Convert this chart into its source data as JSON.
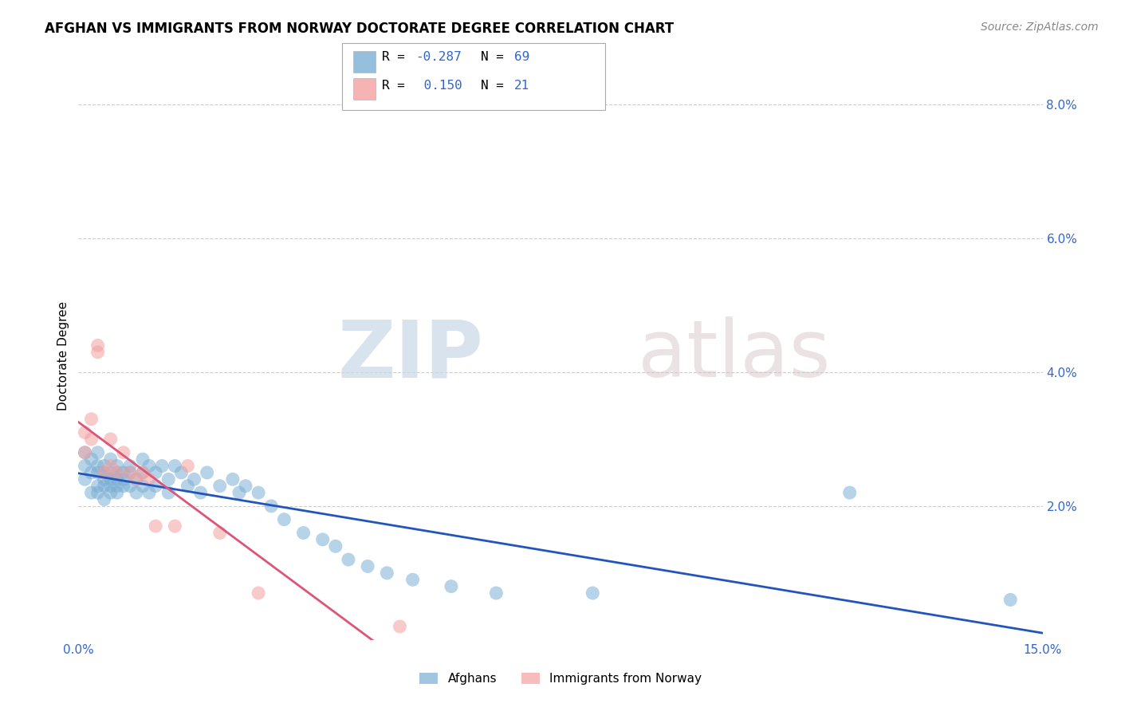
{
  "title": "AFGHAN VS IMMIGRANTS FROM NORWAY DOCTORATE DEGREE CORRELATION CHART",
  "source": "Source: ZipAtlas.com",
  "ylabel": "Doctorate Degree",
  "xlim": [
    0.0,
    0.15
  ],
  "ylim": [
    0.0,
    0.085
  ],
  "grid_color": "#cccccc",
  "background_color": "#ffffff",
  "watermark_zip": "ZIP",
  "watermark_atlas": "atlas",
  "blue_R": -0.287,
  "blue_N": 69,
  "pink_R": 0.15,
  "pink_N": 21,
  "blue_color": "#7bafd4",
  "pink_color": "#f4a0a0",
  "blue_line_color": "#2255bb",
  "pink_line_color": "#dd5577",
  "blue_x": [
    0.001,
    0.001,
    0.001,
    0.002,
    0.002,
    0.002,
    0.003,
    0.003,
    0.003,
    0.003,
    0.003,
    0.004,
    0.004,
    0.004,
    0.004,
    0.004,
    0.005,
    0.005,
    0.005,
    0.005,
    0.005,
    0.006,
    0.006,
    0.006,
    0.006,
    0.006,
    0.007,
    0.007,
    0.007,
    0.008,
    0.008,
    0.008,
    0.009,
    0.009,
    0.01,
    0.01,
    0.01,
    0.011,
    0.011,
    0.012,
    0.012,
    0.013,
    0.014,
    0.014,
    0.015,
    0.016,
    0.017,
    0.018,
    0.019,
    0.02,
    0.022,
    0.024,
    0.025,
    0.026,
    0.028,
    0.03,
    0.032,
    0.035,
    0.038,
    0.04,
    0.042,
    0.045,
    0.048,
    0.052,
    0.058,
    0.065,
    0.08,
    0.12,
    0.145
  ],
  "blue_y": [
    0.026,
    0.028,
    0.024,
    0.025,
    0.022,
    0.027,
    0.025,
    0.023,
    0.026,
    0.022,
    0.028,
    0.024,
    0.026,
    0.023,
    0.025,
    0.021,
    0.025,
    0.023,
    0.027,
    0.024,
    0.022,
    0.025,
    0.023,
    0.026,
    0.024,
    0.022,
    0.025,
    0.023,
    0.024,
    0.026,
    0.023,
    0.025,
    0.024,
    0.022,
    0.027,
    0.025,
    0.023,
    0.026,
    0.022,
    0.025,
    0.023,
    0.026,
    0.024,
    0.022,
    0.026,
    0.025,
    0.023,
    0.024,
    0.022,
    0.025,
    0.023,
    0.024,
    0.022,
    0.023,
    0.022,
    0.02,
    0.018,
    0.016,
    0.015,
    0.014,
    0.012,
    0.011,
    0.01,
    0.009,
    0.008,
    0.007,
    0.007,
    0.022,
    0.006
  ],
  "pink_x": [
    0.001,
    0.001,
    0.002,
    0.002,
    0.003,
    0.003,
    0.004,
    0.005,
    0.005,
    0.006,
    0.007,
    0.008,
    0.009,
    0.01,
    0.011,
    0.012,
    0.015,
    0.017,
    0.022,
    0.028,
    0.05
  ],
  "pink_y": [
    0.031,
    0.028,
    0.03,
    0.033,
    0.043,
    0.044,
    0.025,
    0.03,
    0.026,
    0.025,
    0.028,
    0.025,
    0.024,
    0.025,
    0.024,
    0.017,
    0.017,
    0.026,
    0.016,
    0.007,
    0.002
  ],
  "title_fontsize": 12,
  "axis_label_fontsize": 11,
  "tick_fontsize": 11,
  "source_fontsize": 10
}
